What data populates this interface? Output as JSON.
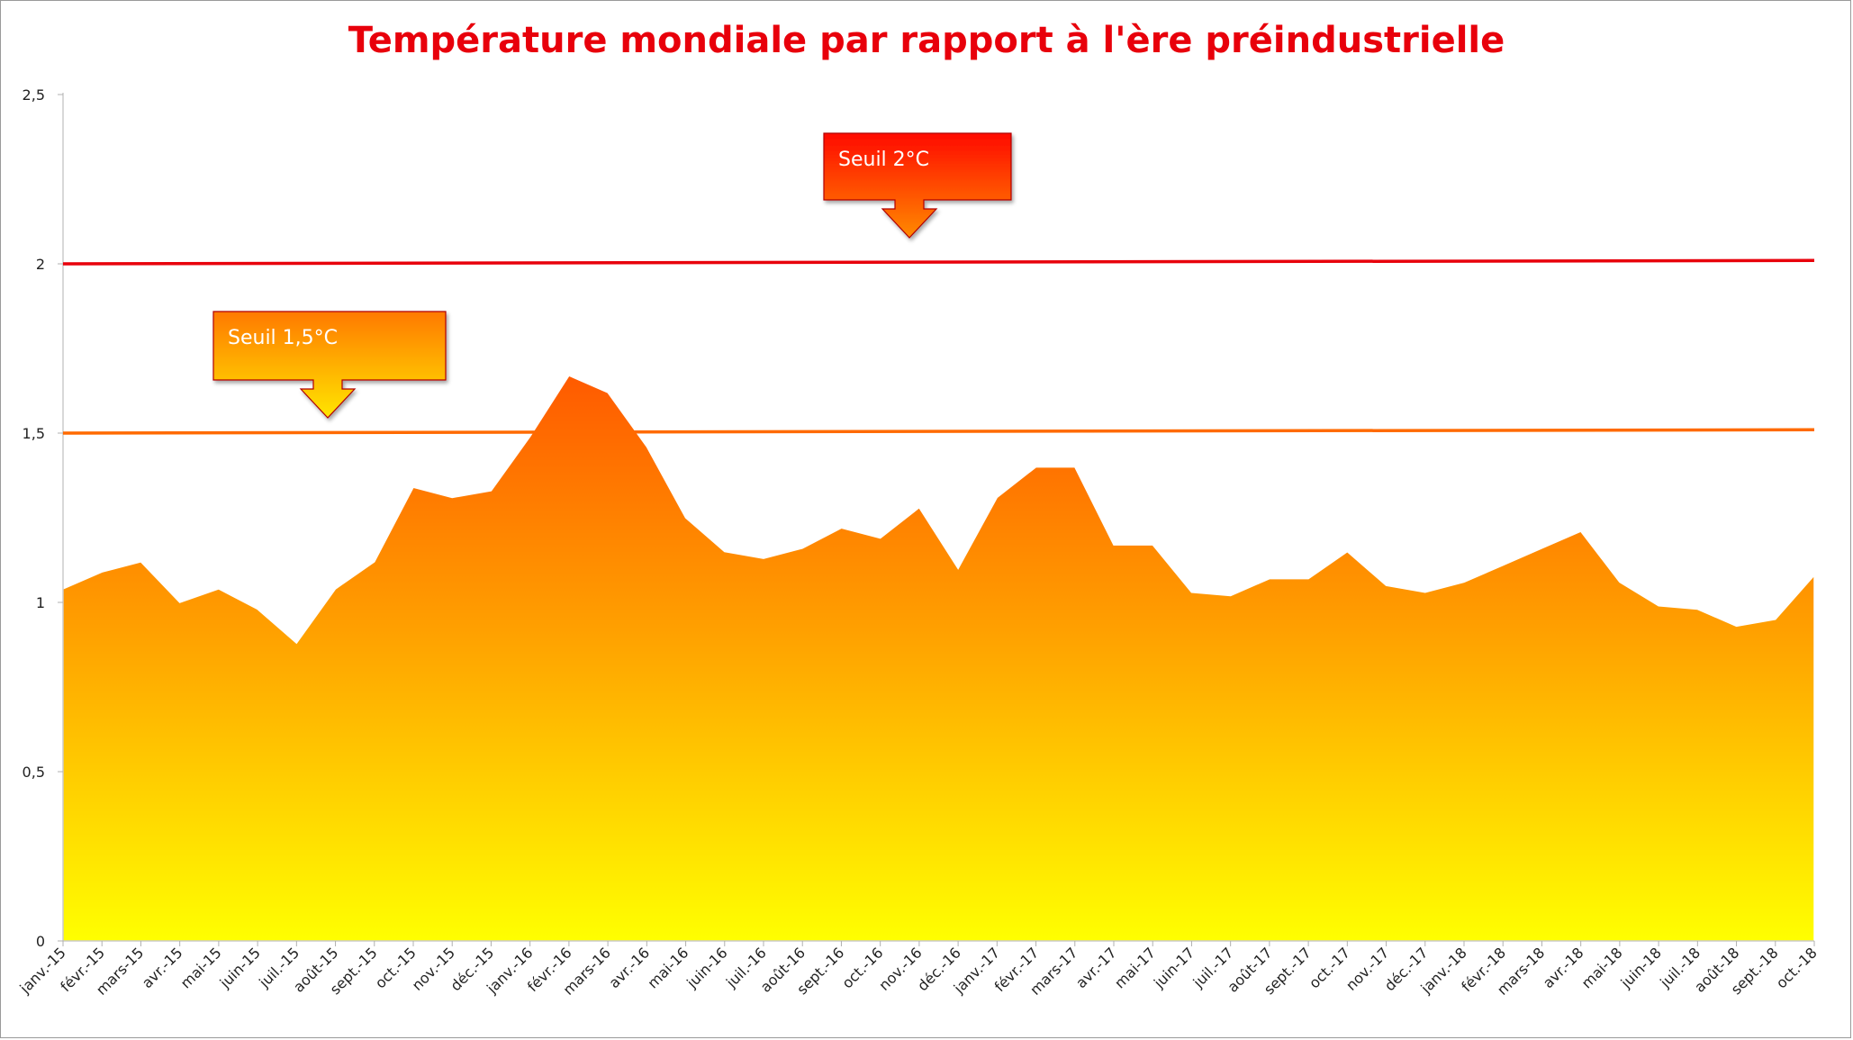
{
  "title": "Température mondiale par rapport à l'ère préindustrielle",
  "colors": {
    "title": "#e8000b",
    "threshold_2": "#e8000b",
    "threshold_15": "#ff6a00",
    "area_top": "#ff5a00",
    "area_bottom": "#ffff00",
    "axis": "#b0b0b0"
  },
  "chart_data": {
    "type": "area",
    "title": "Température mondiale par rapport à l'ère préindustrielle",
    "xlabel": "",
    "ylabel": "",
    "ylim": [
      0,
      2.5
    ],
    "y_ticks": [
      "0",
      "0,5",
      "1",
      "1,5",
      "2",
      "2,5"
    ],
    "grid": false,
    "legend": "none",
    "categories": [
      "janv.-15",
      "févr.-15",
      "mars-15",
      "avr.-15",
      "mai-15",
      "juin-15",
      "juil.-15",
      "août-15",
      "sept.-15",
      "oct.-15",
      "nov.-15",
      "déc.-15",
      "janv.-16",
      "févr.-16",
      "mars-16",
      "avr.-16",
      "mai-16",
      "juin-16",
      "juil.-16",
      "août-16",
      "sept.-16",
      "oct.-16",
      "nov.-16",
      "déc.-16",
      "janv.-17",
      "févr.-17",
      "mars-17",
      "avr.-17",
      "mai-17",
      "juin-17",
      "juil.-17",
      "août-17",
      "sept.-17",
      "oct.-17",
      "nov.-17",
      "déc.-17",
      "janv.-18",
      "févr.-18",
      "mars-18",
      "avr.-18",
      "mai-18",
      "juin-18",
      "juil.-18",
      "août-18",
      "sept.-18",
      "oct.-18"
    ],
    "series": [
      {
        "values": [
          1.04,
          1.09,
          1.12,
          1.0,
          1.04,
          0.98,
          0.88,
          1.04,
          1.12,
          1.34,
          1.31,
          1.33,
          1.49,
          1.67,
          1.62,
          1.46,
          1.25,
          1.15,
          1.13,
          1.16,
          1.22,
          1.19,
          1.28,
          1.1,
          1.31,
          1.4,
          1.4,
          1.17,
          1.17,
          1.03,
          1.02,
          1.07,
          1.07,
          1.15,
          1.05,
          1.03,
          1.06,
          1.11,
          1.16,
          1.21,
          1.06,
          0.99,
          0.98,
          0.93,
          0.95,
          1.08
        ]
      }
    ],
    "thresholds": [
      {
        "label": "Seuil 2°C",
        "start": 2.0,
        "end": 2.01
      },
      {
        "label": "Seuil 1,5°C",
        "start": 1.5,
        "end": 1.51
      }
    ]
  }
}
